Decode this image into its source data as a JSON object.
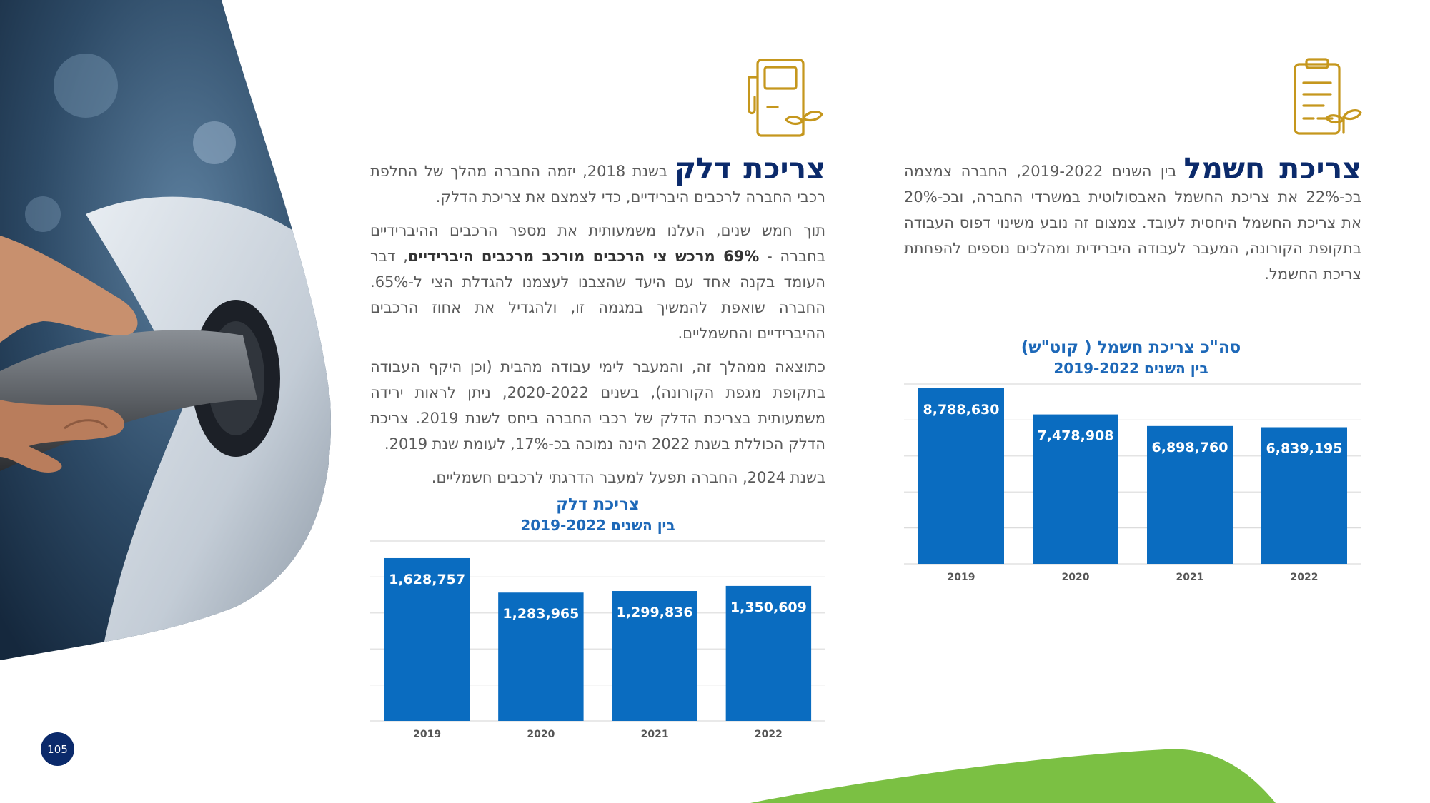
{
  "page": {
    "number": "105"
  },
  "colors": {
    "navy": "#0b2a6b",
    "bar": "#0a6cc0",
    "gold": "#c5971d",
    "chart_title": "#1d68b8",
    "green": "#7bc043"
  },
  "electricity": {
    "title": "צריכת חשמל",
    "intro": "בין השנים 2019-2022, החברה צמצמה בכ-22% את צריכת החשמל האבסולוטית במשרדי החברה, ובכ-20% את צריכת החשמל היחסית לעובד. צמצום זה נובע משינוי דפוס העבודה בתקופת הקורונה, המעבר לעבודה היברידית ומהלכים נוספים להפחתת צריכת החשמל."
  },
  "fuel": {
    "title": "צריכת דלק",
    "intro": "בשנת 2018, יזמה החברה מהלך של החלפת רכבי החברה לרכבים היברידיים, כדי לצמצם את צריכת הדלק.",
    "p2_a": "תוך חמש שנים, העלנו משמעותית את מספר הרכבים ההיברידיים בחברה - ",
    "p2_bold": "69% מרכש צי הרכבים מורכב מרכבים היברידיים",
    "p2_b": ", דבר העומד בקנה אחד עם היעד שהצבנו לעצמנו להגדלת הצי ל-65%. החברה שואפת להמשיך במגמה זו, ולהגדיל את אחוז הרכבים ההיברידיים והחשמליים.",
    "p3": "כתוצאה ממהלך זה, והמעבר לימי עבודה מהבית (וכן היקף העבודה בתקופת מגפת הקורונה), בשנים 2020-2022, ניתן לראות ירידה משמעותית בצריכת הדלק של רכבי החברה ביחס לשנת 2019. צריכת הדלק הכוללת בשנת 2022 הינה נמוכה בכ-17%, לעומת שנת 2019.",
    "p4": "בשנת 2024, החברה תפעל למעבר הדרגתי לרכבים חשמליים."
  },
  "chart_data": [
    {
      "type": "bar",
      "title": "סה\"כ צריכת חשמל ( קוט\"ש)",
      "subtitle": "בין השנים 2019-2022",
      "categories": [
        "2019",
        "2020",
        "2021",
        "2022"
      ],
      "values": [
        8788630,
        7478908,
        6898760,
        6839195
      ],
      "labels": [
        "8,788,630",
        "7,478,908",
        "6,898,760",
        "6,839,195"
      ],
      "ylim": [
        0,
        9000000
      ],
      "grid": true,
      "legend": "none"
    },
    {
      "type": "bar",
      "title": "צריכת דלק",
      "subtitle": "בין השנים 2019-2022",
      "categories": [
        "2019",
        "2020",
        "2021",
        "2022"
      ],
      "values": [
        1628757,
        1283965,
        1299836,
        1350609
      ],
      "labels": [
        "1,628,757",
        "1,283,965",
        "1,299,836",
        "1,350,609"
      ],
      "ylim": [
        0,
        1800000
      ],
      "grid": true,
      "legend": "none"
    }
  ]
}
